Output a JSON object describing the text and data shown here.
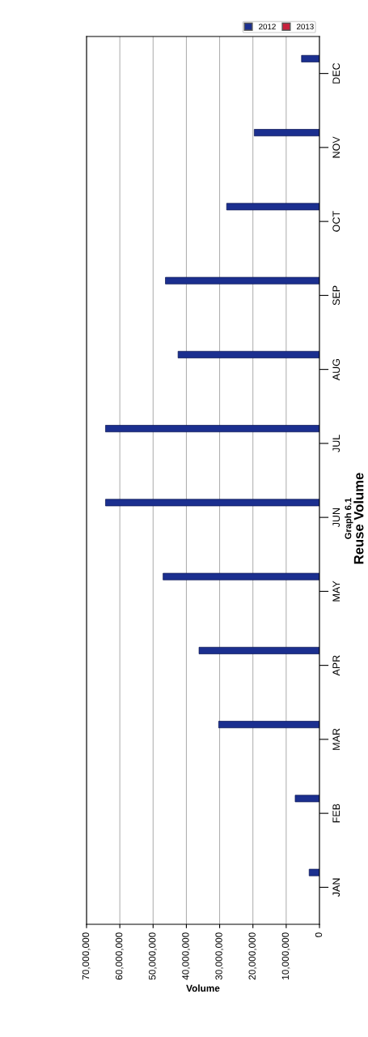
{
  "chart_data": {
    "type": "bar",
    "orientation": "horizontal",
    "title": "Reuse Volume",
    "subtitle": "Graph 6.1",
    "xlabel": "Volume",
    "categories": [
      "DEC",
      "NOV",
      "OCT",
      "SEP",
      "AUG",
      "JUL",
      "JUN",
      "MAY",
      "APR",
      "MAR",
      "FEB",
      "JAN"
    ],
    "series": [
      {
        "name": "2012",
        "color": "#1b2f8f",
        "values": [
          5400000,
          19600000,
          27900000,
          46300000,
          42500000,
          64300000,
          64300000,
          47000000,
          36200000,
          30300000,
          7300000,
          3100000
        ]
      },
      {
        "name": "2013",
        "color": "#c8203c",
        "values": [
          null,
          null,
          null,
          null,
          null,
          null,
          null,
          null,
          null,
          null,
          null,
          null
        ]
      }
    ],
    "xlim": [
      70000000,
      0
    ],
    "xticks": [
      {
        "value": 70000000,
        "label": "70,000,000"
      },
      {
        "value": 60000000,
        "label": "60,000,000"
      },
      {
        "value": 50000000,
        "label": "50,000,000"
      },
      {
        "value": 40000000,
        "label": "40,000,000"
      },
      {
        "value": 30000000,
        "label": "30,000,000"
      },
      {
        "value": 20000000,
        "label": "20,000,000"
      },
      {
        "value": 10000000,
        "label": "10,000,000"
      },
      0
    ],
    "grid": "x",
    "legend": "top right"
  }
}
